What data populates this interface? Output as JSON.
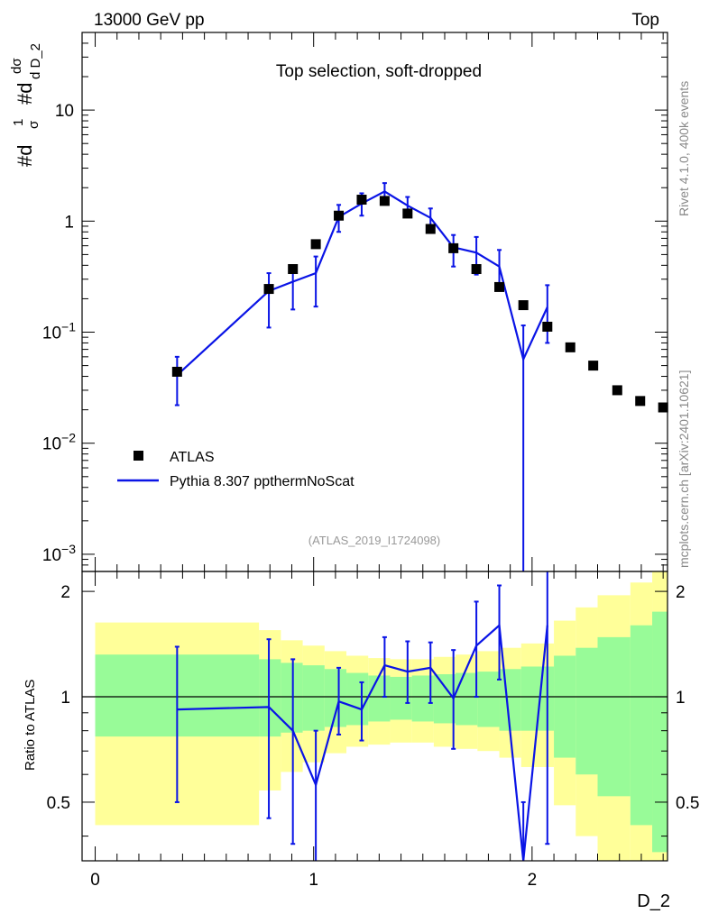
{
  "header": {
    "left": "13000 GeV pp",
    "right": "Top"
  },
  "side_text": {
    "rivet": "Rivet 4.1.0,  400k events",
    "url": "mcplots.cern.ch [arXiv:2401.10621]"
  },
  "chart_data": {
    "type": "scatter",
    "title": "Top selection, soft-dropped",
    "analysis_label": "(ATLAS_2019_I1724098)",
    "xlabel": "D_2",
    "ylabel_parts": {
      "a": "#d",
      "b": "1",
      "c": "σ",
      "d": "#d",
      "e": "dσ",
      "f": "d D_2"
    },
    "ratio_ylabel": "Ratio to ATLAS",
    "xlim": [
      -0.06,
      2.62
    ],
    "ylim": [
      0.0007,
      50
    ],
    "ratio_ylim": [
      0.34,
      2.28
    ],
    "x_ticks": [
      {
        "value": 0,
        "label": "0"
      },
      {
        "value": 1,
        "label": "1"
      },
      {
        "value": 2,
        "label": "2"
      }
    ],
    "y_ticks": [
      {
        "value": 0.001,
        "base": "10",
        "exp": "−3"
      },
      {
        "value": 0.01,
        "base": "10",
        "exp": "−2"
      },
      {
        "value": 0.1,
        "base": "10",
        "exp": "−1"
      },
      {
        "value": 1,
        "base": "1",
        "exp": ""
      },
      {
        "value": 10,
        "base": "10",
        "exp": ""
      }
    ],
    "ratio_ticks": [
      {
        "value": 0.5,
        "label": "0.5"
      },
      {
        "value": 1,
        "label": "1"
      },
      {
        "value": 2,
        "label": "2"
      }
    ],
    "legend": [
      {
        "name": "ATLAS",
        "marker": "square"
      },
      {
        "name": "Pythia 8.307 ppthermNoScat",
        "marker": "line"
      }
    ],
    "colors": {
      "data": "#000000",
      "mc": "#0a14e6",
      "band_inner": "#98fb98",
      "band_outer": "#ffff99"
    },
    "data_points": {
      "x": [
        0.375,
        0.795,
        0.905,
        1.01,
        1.115,
        1.22,
        1.325,
        1.43,
        1.535,
        1.64,
        1.745,
        1.85,
        1.96,
        2.07,
        2.175,
        2.28,
        2.39,
        2.495,
        2.6
      ],
      "y": [
        0.044,
        0.245,
        0.37,
        0.62,
        1.12,
        1.56,
        1.52,
        1.17,
        0.85,
        0.57,
        0.37,
        0.255,
        0.175,
        0.112,
        0.073,
        0.05,
        0.03,
        0.024,
        0.021
      ]
    },
    "mc": {
      "x": [
        0.375,
        0.795,
        0.905,
        1.01,
        1.115,
        1.22,
        1.325,
        1.43,
        1.535,
        1.64,
        1.745,
        1.85,
        1.96,
        2.07
      ],
      "y": [
        0.041,
        0.235,
        0.285,
        0.34,
        1.09,
        1.44,
        1.85,
        1.38,
        1.07,
        0.58,
        0.52,
        0.39,
        0.057,
        0.168
      ],
      "y_low": [
        0.022,
        0.11,
        0.16,
        0.17,
        0.8,
        1.12,
        1.5,
        1.1,
        0.83,
        0.39,
        0.33,
        0.24,
        0.0001,
        0.08
      ],
      "y_high": [
        0.06,
        0.34,
        0.4,
        0.48,
        1.4,
        1.78,
        2.2,
        1.65,
        1.3,
        0.75,
        0.72,
        0.55,
        0.115,
        0.265
      ]
    },
    "ratio": {
      "x": [
        0.375,
        0.795,
        0.905,
        1.01,
        1.115,
        1.22,
        1.325,
        1.43,
        1.535,
        1.64,
        1.745,
        1.85,
        1.96,
        2.07
      ],
      "y": [
        0.92,
        0.935,
        0.8,
        0.56,
        0.97,
        0.92,
        1.23,
        1.18,
        1.21,
        0.99,
        1.4,
        1.6,
        0.22,
        1.6
      ],
      "y_low": [
        0.5,
        0.45,
        0.38,
        0.3,
        0.78,
        0.75,
        1.0,
        0.96,
        0.96,
        0.71,
        1.0,
        1.12,
        0.0,
        0.38
      ],
      "y_high": [
        1.39,
        1.46,
        1.28,
        0.8,
        1.21,
        1.1,
        1.48,
        1.44,
        1.43,
        1.36,
        1.87,
        2.08,
        0.5,
        2.28
      ]
    },
    "bands": {
      "edges": [
        0.0,
        0.75,
        0.85,
        0.95,
        1.05,
        1.15,
        1.25,
        1.35,
        1.45,
        1.55,
        1.65,
        1.75,
        1.85,
        1.95,
        2.1,
        2.2,
        2.3,
        2.45,
        2.55,
        2.65
      ],
      "inner_low": [
        0.77,
        0.77,
        0.79,
        0.8,
        0.82,
        0.83,
        0.85,
        0.86,
        0.85,
        0.84,
        0.83,
        0.82,
        0.8,
        0.8,
        0.67,
        0.6,
        0.52,
        0.43,
        0.36
      ],
      "inner_high": [
        1.32,
        1.28,
        1.25,
        1.23,
        1.2,
        1.17,
        1.15,
        1.14,
        1.15,
        1.16,
        1.17,
        1.18,
        1.2,
        1.22,
        1.31,
        1.38,
        1.48,
        1.6,
        1.75
      ],
      "outer_low": [
        0.43,
        0.54,
        0.61,
        0.65,
        0.69,
        0.72,
        0.73,
        0.74,
        0.74,
        0.72,
        0.71,
        0.7,
        0.67,
        0.63,
        0.49,
        0.4,
        0.34,
        0.34,
        0.34
      ],
      "outer_high": [
        1.63,
        1.55,
        1.45,
        1.4,
        1.35,
        1.31,
        1.29,
        1.28,
        1.28,
        1.3,
        1.32,
        1.35,
        1.38,
        1.42,
        1.65,
        1.8,
        1.95,
        2.12,
        2.28
      ]
    }
  }
}
